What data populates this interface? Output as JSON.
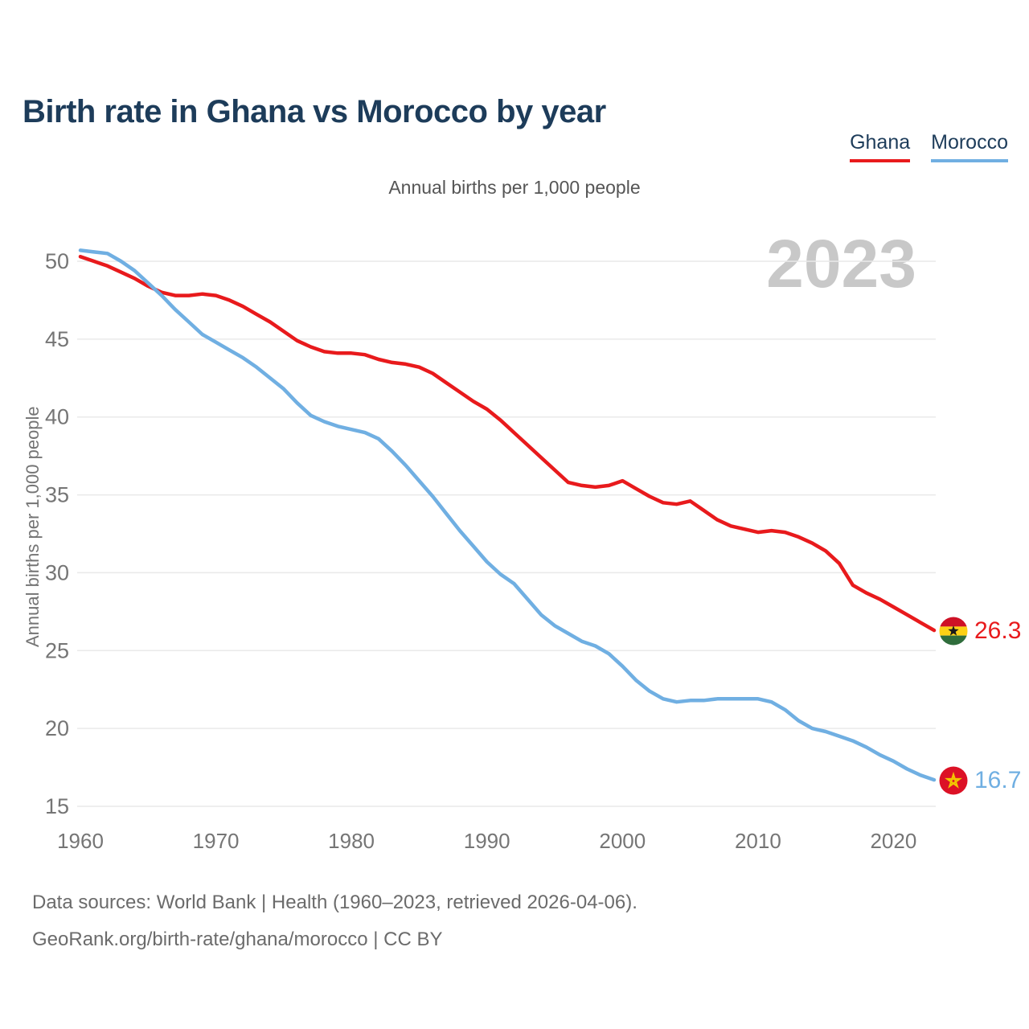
{
  "header": {
    "title": "Birth rate in Ghana vs Morocco by year"
  },
  "legend": {
    "items": [
      {
        "label": "Ghana",
        "color": "#e81a1c"
      },
      {
        "label": "Morocco",
        "color": "#70afe2"
      }
    ]
  },
  "subtitle": "Annual births per 1,000 people",
  "watermark": "2023",
  "end_labels": {
    "ghana": "26.3",
    "morocco": "16.7"
  },
  "icons": {
    "ghana_flag": "ghana-flag-icon",
    "morocco_flag": "morocco-flag-icon"
  },
  "footer": {
    "line1": "Data sources: World Bank | Health (1960–2023, retrieved 2026-04-06).",
    "line2": "GeoRank.org/birth-rate/ghana/morocco | CC BY"
  },
  "chart_data": {
    "type": "line",
    "title": "Birth rate in Ghana vs Morocco by year",
    "ylabel": "Annual births per 1,000 people",
    "xlabel": "",
    "x_range": [
      1960,
      2023
    ],
    "ylim": [
      15,
      50
    ],
    "yticks": [
      15,
      20,
      25,
      30,
      35,
      40,
      45,
      50
    ],
    "xticks": [
      1960,
      1970,
      1980,
      1990,
      2000,
      2010,
      2020
    ],
    "grid": "horizontal",
    "legend_position": "top-right",
    "x": [
      1960,
      1961,
      1962,
      1963,
      1964,
      1965,
      1966,
      1967,
      1968,
      1969,
      1970,
      1971,
      1972,
      1973,
      1974,
      1975,
      1976,
      1977,
      1978,
      1979,
      1980,
      1981,
      1982,
      1983,
      1984,
      1985,
      1986,
      1987,
      1988,
      1989,
      1990,
      1991,
      1992,
      1993,
      1994,
      1995,
      1996,
      1997,
      1998,
      1999,
      2000,
      2001,
      2002,
      2003,
      2004,
      2005,
      2006,
      2007,
      2008,
      2009,
      2010,
      2011,
      2012,
      2013,
      2014,
      2015,
      2016,
      2017,
      2018,
      2019,
      2020,
      2021,
      2022,
      2023
    ],
    "series": [
      {
        "name": "Ghana",
        "color": "#e81a1c",
        "end_label": "26.3",
        "values": [
          50.3,
          50.0,
          49.7,
          49.3,
          48.9,
          48.4,
          48.0,
          47.8,
          47.8,
          47.9,
          47.8,
          47.5,
          47.1,
          46.6,
          46.1,
          45.5,
          44.9,
          44.5,
          44.2,
          44.1,
          44.1,
          44.0,
          43.7,
          43.5,
          43.4,
          43.2,
          42.8,
          42.2,
          41.6,
          41.0,
          40.5,
          39.8,
          39.0,
          38.2,
          37.4,
          36.6,
          35.8,
          35.6,
          35.5,
          35.6,
          35.9,
          35.4,
          34.9,
          34.5,
          34.4,
          34.6,
          34.0,
          33.4,
          33.0,
          32.8,
          32.6,
          32.7,
          32.6,
          32.3,
          31.9,
          31.4,
          30.6,
          29.2,
          28.7,
          28.3,
          27.8,
          27.3,
          26.8,
          26.3
        ]
      },
      {
        "name": "Morocco",
        "color": "#70afe2",
        "end_label": "16.7",
        "values": [
          50.7,
          50.6,
          50.5,
          50.0,
          49.4,
          48.6,
          47.8,
          46.9,
          46.1,
          45.3,
          44.8,
          44.3,
          43.8,
          43.2,
          42.5,
          41.8,
          40.9,
          40.1,
          39.7,
          39.4,
          39.2,
          39.0,
          38.6,
          37.8,
          36.9,
          35.9,
          34.9,
          33.8,
          32.7,
          31.7,
          30.7,
          29.9,
          29.3,
          28.3,
          27.3,
          26.6,
          26.1,
          25.6,
          25.3,
          24.8,
          24.0,
          23.1,
          22.4,
          21.9,
          21.7,
          21.8,
          21.8,
          21.9,
          21.9,
          21.9,
          21.9,
          21.7,
          21.2,
          20.5,
          20.0,
          19.8,
          19.5,
          19.2,
          18.8,
          18.3,
          17.9,
          17.4,
          17.0,
          16.7
        ]
      }
    ]
  }
}
